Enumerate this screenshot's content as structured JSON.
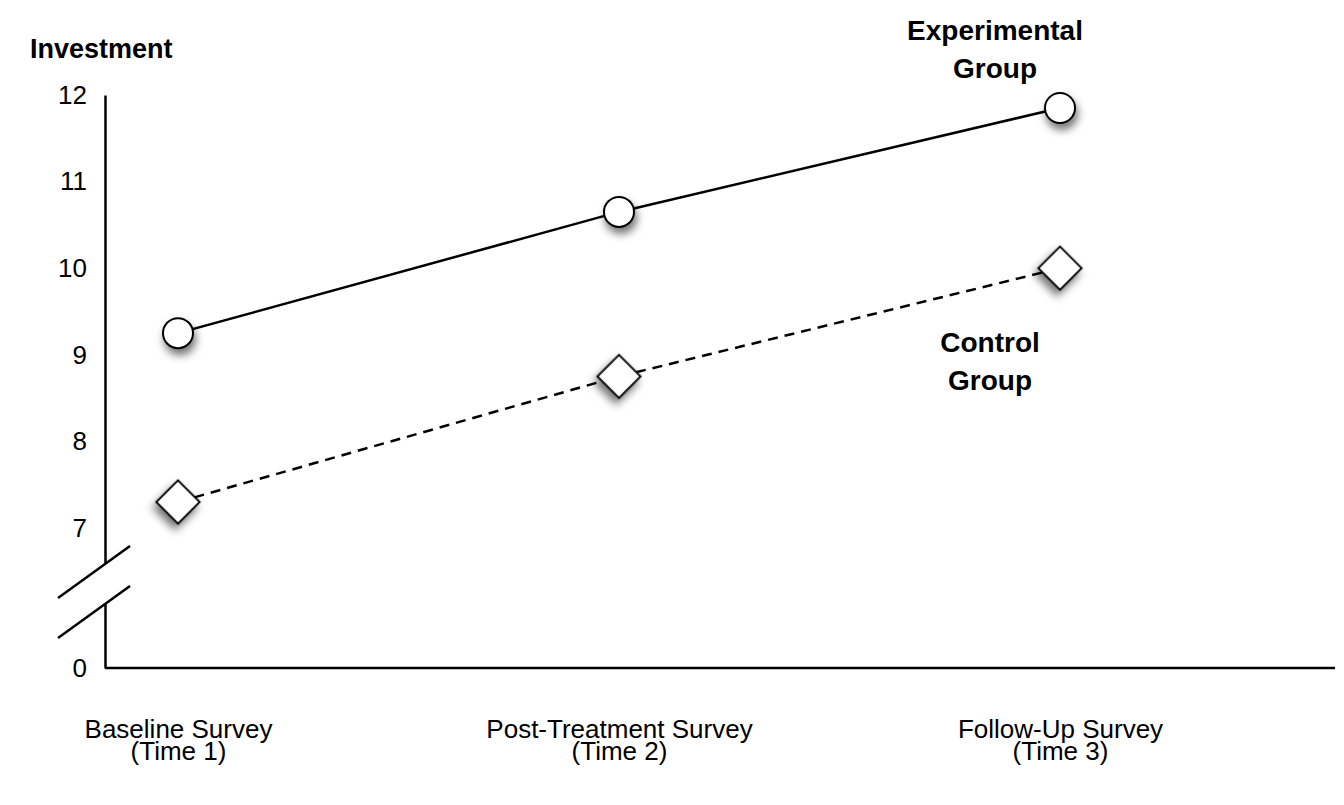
{
  "chart_data": {
    "type": "line",
    "y_label": "Investment",
    "categories": [
      "Baseline Survey\n(Time 1)",
      "Post-Treatment Survey\n(Time 2)",
      "Follow-Up Survey\n(Time 3)"
    ],
    "series": [
      {
        "name": "Experimental Group",
        "color": "#000000",
        "marker": "circle",
        "line_style": "solid",
        "values": [
          9.25,
          10.65,
          11.85
        ]
      },
      {
        "name": "Control Group",
        "color": "#000000",
        "marker": "diamond",
        "line_style": "dashed",
        "values": [
          7.3,
          8.75,
          10.0
        ]
      }
    ],
    "ylim": [
      0,
      12
    ],
    "yticks": [
      0,
      7,
      8,
      9,
      10,
      11,
      12
    ]
  }
}
